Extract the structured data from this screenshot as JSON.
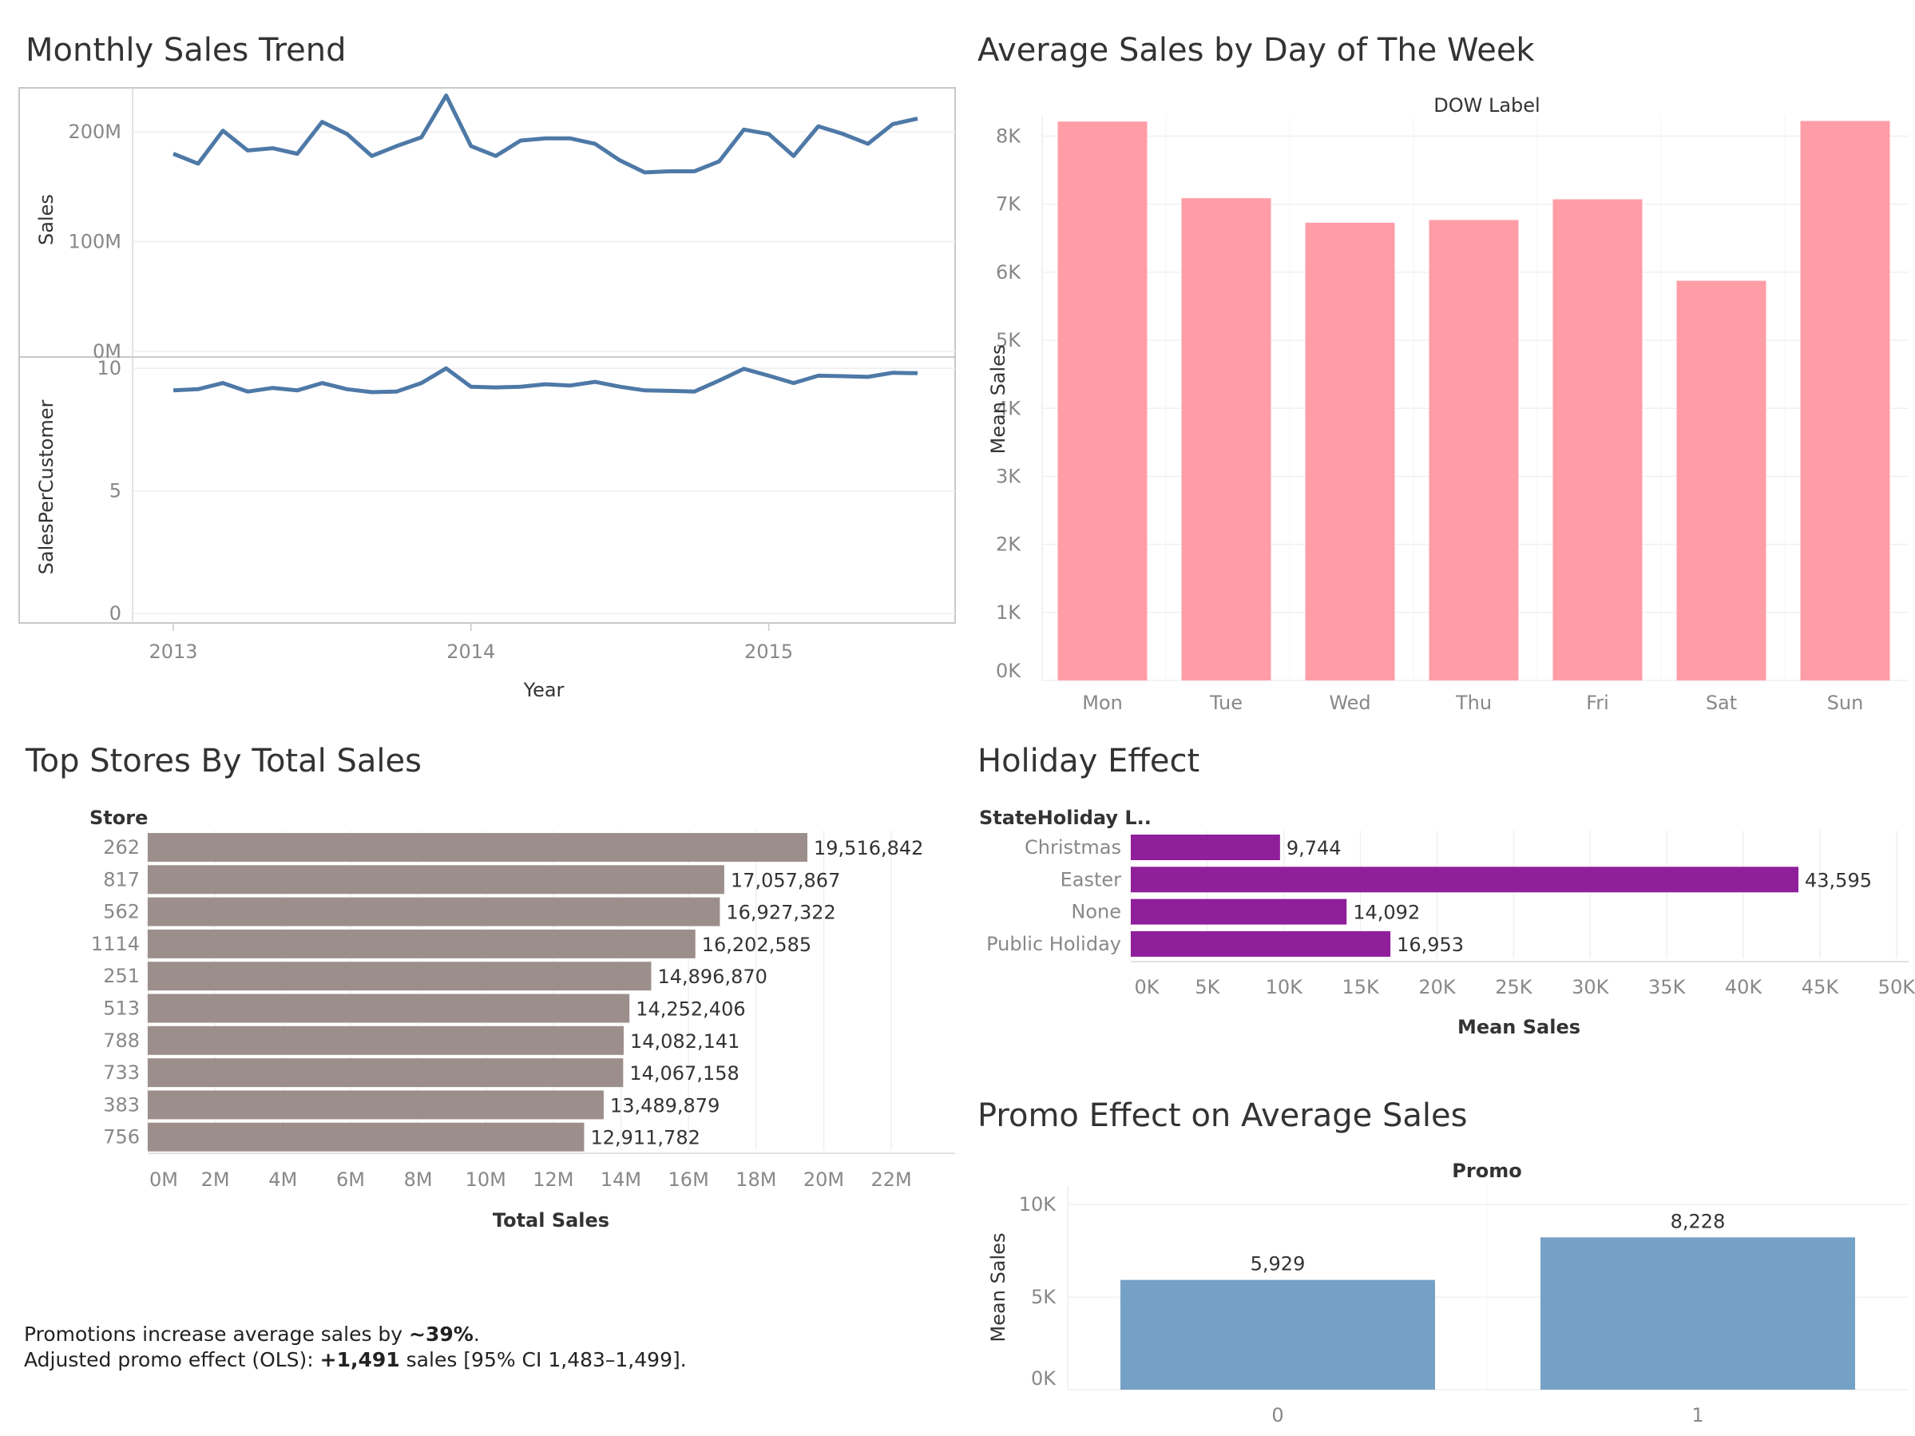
{
  "titles": {
    "monthly": "Monthly Sales Trend",
    "dow": "Average Sales by Day of The Week",
    "stores": "Top Stores By Total Sales",
    "holiday": "Holiday Effect",
    "promo": "Promo Effect on Average Sales"
  },
  "note": {
    "line1_prefix": "Promotions increase average sales by ",
    "line1_bold": "~39%",
    "line1_suffix": ".",
    "line2_prefix": "Adjusted promo effect (OLS): ",
    "line2_bold": "+1,491",
    "line2_suffix": " sales [95% CI 1,483–1,499]."
  },
  "colors": {
    "line": "#4e79a7",
    "dow_bar": "#ff9da7",
    "store_bar": "#9c8f8b",
    "holiday_bar": "#8f1f9a",
    "promo_bar": "#76a1c6"
  },
  "chart_data": [
    {
      "type": "line",
      "id": "monthly",
      "xlabel": "Year",
      "x_ticks": [
        "2013",
        "2014",
        "2015"
      ],
      "x": [
        "2013-01",
        "2013-02",
        "2013-03",
        "2013-04",
        "2013-05",
        "2013-06",
        "2013-07",
        "2013-08",
        "2013-09",
        "2013-10",
        "2013-11",
        "2013-12",
        "2014-01",
        "2014-02",
        "2014-03",
        "2014-04",
        "2014-05",
        "2014-06",
        "2014-07",
        "2014-08",
        "2014-09",
        "2014-10",
        "2014-11",
        "2014-12",
        "2015-01",
        "2015-02",
        "2015-03",
        "2015-04",
        "2015-05",
        "2015-06",
        "2015-07"
      ],
      "panels": [
        {
          "ylabel": "Sales",
          "y_ticks": [
            "0M",
            "100M",
            "200M"
          ],
          "ylim": [
            0,
            240
          ],
          "unit": "M",
          "values": [
            180,
            171,
            201,
            183,
            185,
            180,
            209,
            198,
            178,
            187,
            195,
            233,
            187,
            178,
            192,
            194,
            194,
            189,
            174,
            163,
            164,
            164,
            173,
            202,
            198,
            178,
            205,
            198,
            189,
            207,
            212
          ]
        },
        {
          "ylabel": "SalesPerCustomer",
          "y_ticks": [
            "0",
            "5",
            "10"
          ],
          "ylim": [
            0,
            10.3
          ],
          "values": [
            9.1,
            9.15,
            9.4,
            9.05,
            9.2,
            9.1,
            9.4,
            9.15,
            9.03,
            9.05,
            9.4,
            10.0,
            9.25,
            9.22,
            9.25,
            9.35,
            9.3,
            9.45,
            9.25,
            9.1,
            9.08,
            9.05,
            9.5,
            9.98,
            9.7,
            9.4,
            9.7,
            9.68,
            9.65,
            9.82,
            9.8
          ]
        }
      ]
    },
    {
      "type": "bar",
      "id": "dow",
      "header": "DOW Label",
      "ylabel": "Mean Sales",
      "categories": [
        "Mon",
        "Tue",
        "Wed",
        "Thu",
        "Fri",
        "Sat",
        "Sun"
      ],
      "values": [
        8216,
        7089,
        6728,
        6768,
        7073,
        5875,
        8224
      ],
      "y_ticks": [
        "0K",
        "1K",
        "2K",
        "3K",
        "4K",
        "5K",
        "6K",
        "7K",
        "8K"
      ],
      "ylim": [
        0,
        8300
      ]
    },
    {
      "type": "bar",
      "id": "stores",
      "orientation": "horizontal",
      "header": "Store",
      "xlabel": "Total Sales",
      "categories": [
        "262",
        "817",
        "562",
        "1114",
        "251",
        "513",
        "788",
        "733",
        "383",
        "756"
      ],
      "values": [
        19516842,
        17057867,
        16927322,
        16202585,
        14896870,
        14252406,
        14082141,
        14067158,
        13489879,
        12911782
      ],
      "labels": [
        "19,516,842",
        "17,057,867",
        "16,927,322",
        "16,202,585",
        "14,896,870",
        "14,252,406",
        "14,082,141",
        "14,067,158",
        "13,489,879",
        "12,911,782"
      ],
      "x_ticks": [
        "0M",
        "2M",
        "4M",
        "6M",
        "8M",
        "10M",
        "12M",
        "14M",
        "16M",
        "18M",
        "20M",
        "22M"
      ],
      "xlim": [
        0,
        24000000
      ]
    },
    {
      "type": "bar",
      "id": "holiday",
      "orientation": "horizontal",
      "header": "StateHoliday L..",
      "xlabel": "Mean Sales",
      "categories": [
        "Christmas",
        "Easter",
        "None",
        "Public Holiday"
      ],
      "values": [
        9744,
        43595,
        14092,
        16953
      ],
      "labels": [
        "9,744",
        "43,595",
        "14,092",
        "16,953"
      ],
      "x_ticks": [
        "0K",
        "5K",
        "10K",
        "15K",
        "20K",
        "25K",
        "30K",
        "35K",
        "40K",
        "45K",
        "50K"
      ],
      "xlim": [
        0,
        50500
      ]
    },
    {
      "type": "bar",
      "id": "promo",
      "header": "Promo",
      "ylabel": "Mean Sales",
      "categories": [
        "0",
        "1"
      ],
      "values": [
        5929,
        8228
      ],
      "labels": [
        "5,929",
        "8,228"
      ],
      "y_ticks": [
        "0K",
        "5K",
        "10K"
      ],
      "ylim": [
        0,
        11000
      ]
    }
  ]
}
